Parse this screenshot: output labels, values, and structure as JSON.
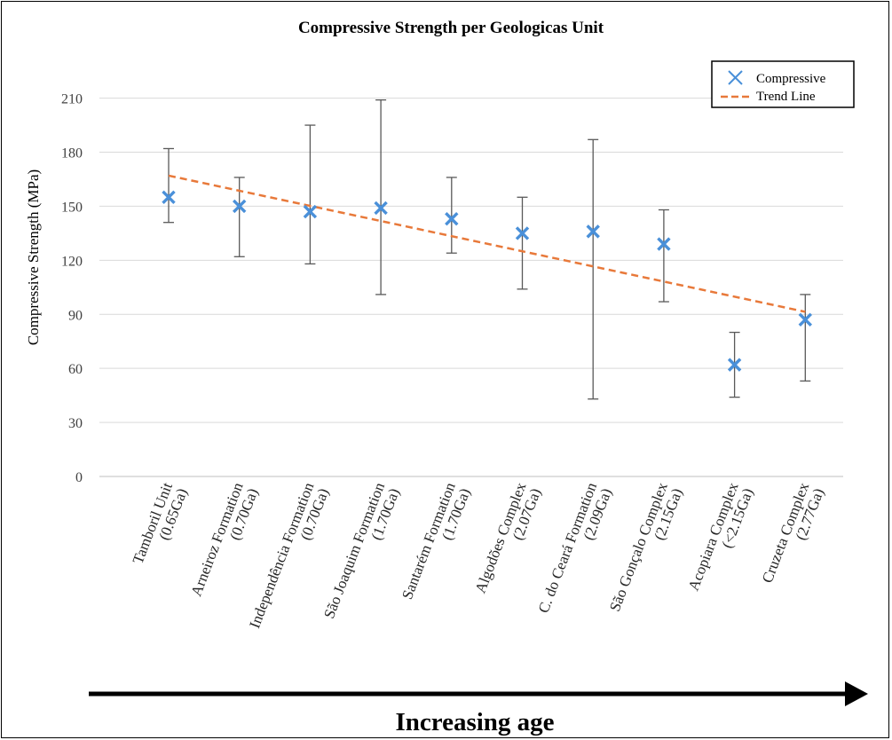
{
  "chart_data": {
    "type": "scatter",
    "title": "Compressive Strength per Geologicas Unit",
    "ylabel": "Compressive Strength (MPa)",
    "xlabel": "",
    "ylim": [
      0,
      230
    ],
    "yticks": [
      0,
      30,
      60,
      90,
      120,
      150,
      180,
      210
    ],
    "grid": true,
    "legend_position": "top-right",
    "categories": [
      [
        "Tamboril Unit",
        "(0.65Ga)"
      ],
      [
        "Arneiroz Formation",
        "(0.70Ga)"
      ],
      [
        "Independência Formation",
        "(0.70Ga)"
      ],
      [
        "São Joaquim Formation",
        "(1.70Ga)"
      ],
      [
        "Santarém Formation",
        "(1.70Ga)"
      ],
      [
        "Algodões Complex",
        "(2.07Ga)"
      ],
      [
        "C. do Ceará Formation",
        "(2.09Ga)"
      ],
      [
        "São Gonçalo Complex",
        "(2.15Ga)"
      ],
      [
        "Acopiara Complex",
        "(<2.15Ga)"
      ],
      [
        "Cruzeta Complex",
        "(2.77Ga)"
      ]
    ],
    "series": [
      {
        "name": "Compressive",
        "color": "#4a90d9",
        "values": [
          155,
          150,
          147,
          149,
          143,
          135,
          136,
          129,
          62,
          87
        ],
        "error_low": [
          141,
          122,
          118,
          101,
          124,
          104,
          43,
          97,
          44,
          53
        ],
        "error_high": [
          182,
          166,
          195,
          209,
          166,
          155,
          187,
          148,
          80,
          101
        ]
      },
      {
        "name": "Trend Line",
        "color": "#e8793a",
        "values": [
          167,
          158.6,
          150.2,
          141.8,
          133.4,
          125,
          116.6,
          108.2,
          99.8,
          91.4
        ]
      }
    ]
  },
  "annotation": {
    "label": "Increasing age"
  }
}
